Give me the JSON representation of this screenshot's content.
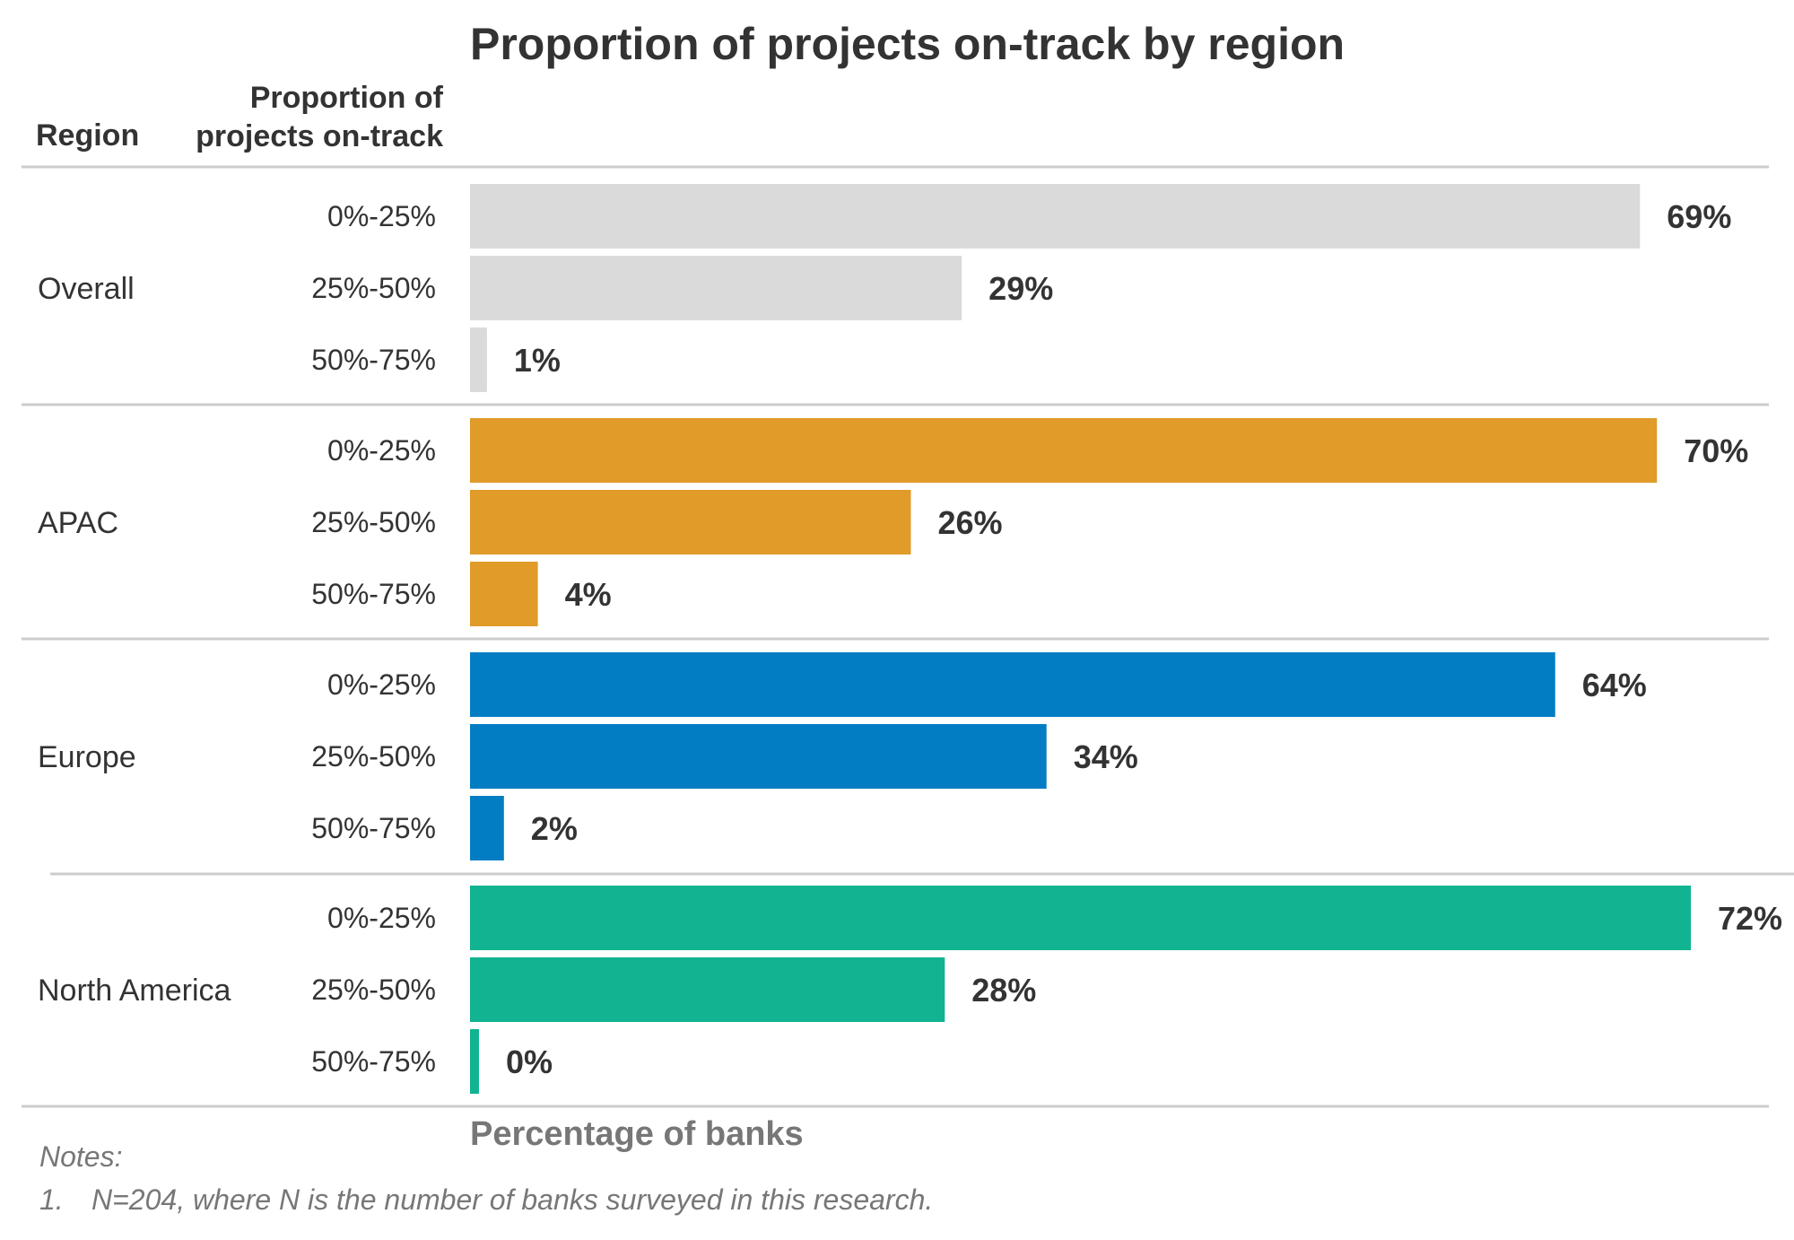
{
  "chart_data": {
    "type": "bar",
    "orientation": "horizontal",
    "title": "Proportion of projects on-track by region",
    "column_headers": {
      "region": "Region",
      "category_line1": "Proportion of",
      "category_line2": "projects on-track"
    },
    "xlabel": "Percentage of banks",
    "xlim": [
      0,
      72
    ],
    "grid": false,
    "legend": "none",
    "categories": [
      "0%-25%",
      "25%-50%",
      "50%-75%"
    ],
    "groups": [
      {
        "region": "Overall",
        "color": "#dadada",
        "values": [
          69,
          29,
          1
        ],
        "labels": [
          "69%",
          "29%",
          "1%"
        ]
      },
      {
        "region": "APAC",
        "color": "#e09b28",
        "values": [
          70,
          26,
          4
        ],
        "labels": [
          "70%",
          "26%",
          "4%"
        ]
      },
      {
        "region": "Europe",
        "color": "#027dc4",
        "values": [
          64,
          34,
          2
        ],
        "labels": [
          "64%",
          "34%",
          "2%"
        ]
      },
      {
        "region": "North America",
        "color": "#11b391",
        "values": [
          72,
          28,
          0
        ],
        "labels": [
          "72%",
          "28%",
          "0%"
        ]
      }
    ],
    "notes": {
      "heading": "Notes:",
      "items": [
        {
          "marker": "1.",
          "text": "N=204, where N is the number of banks surveyed in this research."
        }
      ]
    }
  }
}
